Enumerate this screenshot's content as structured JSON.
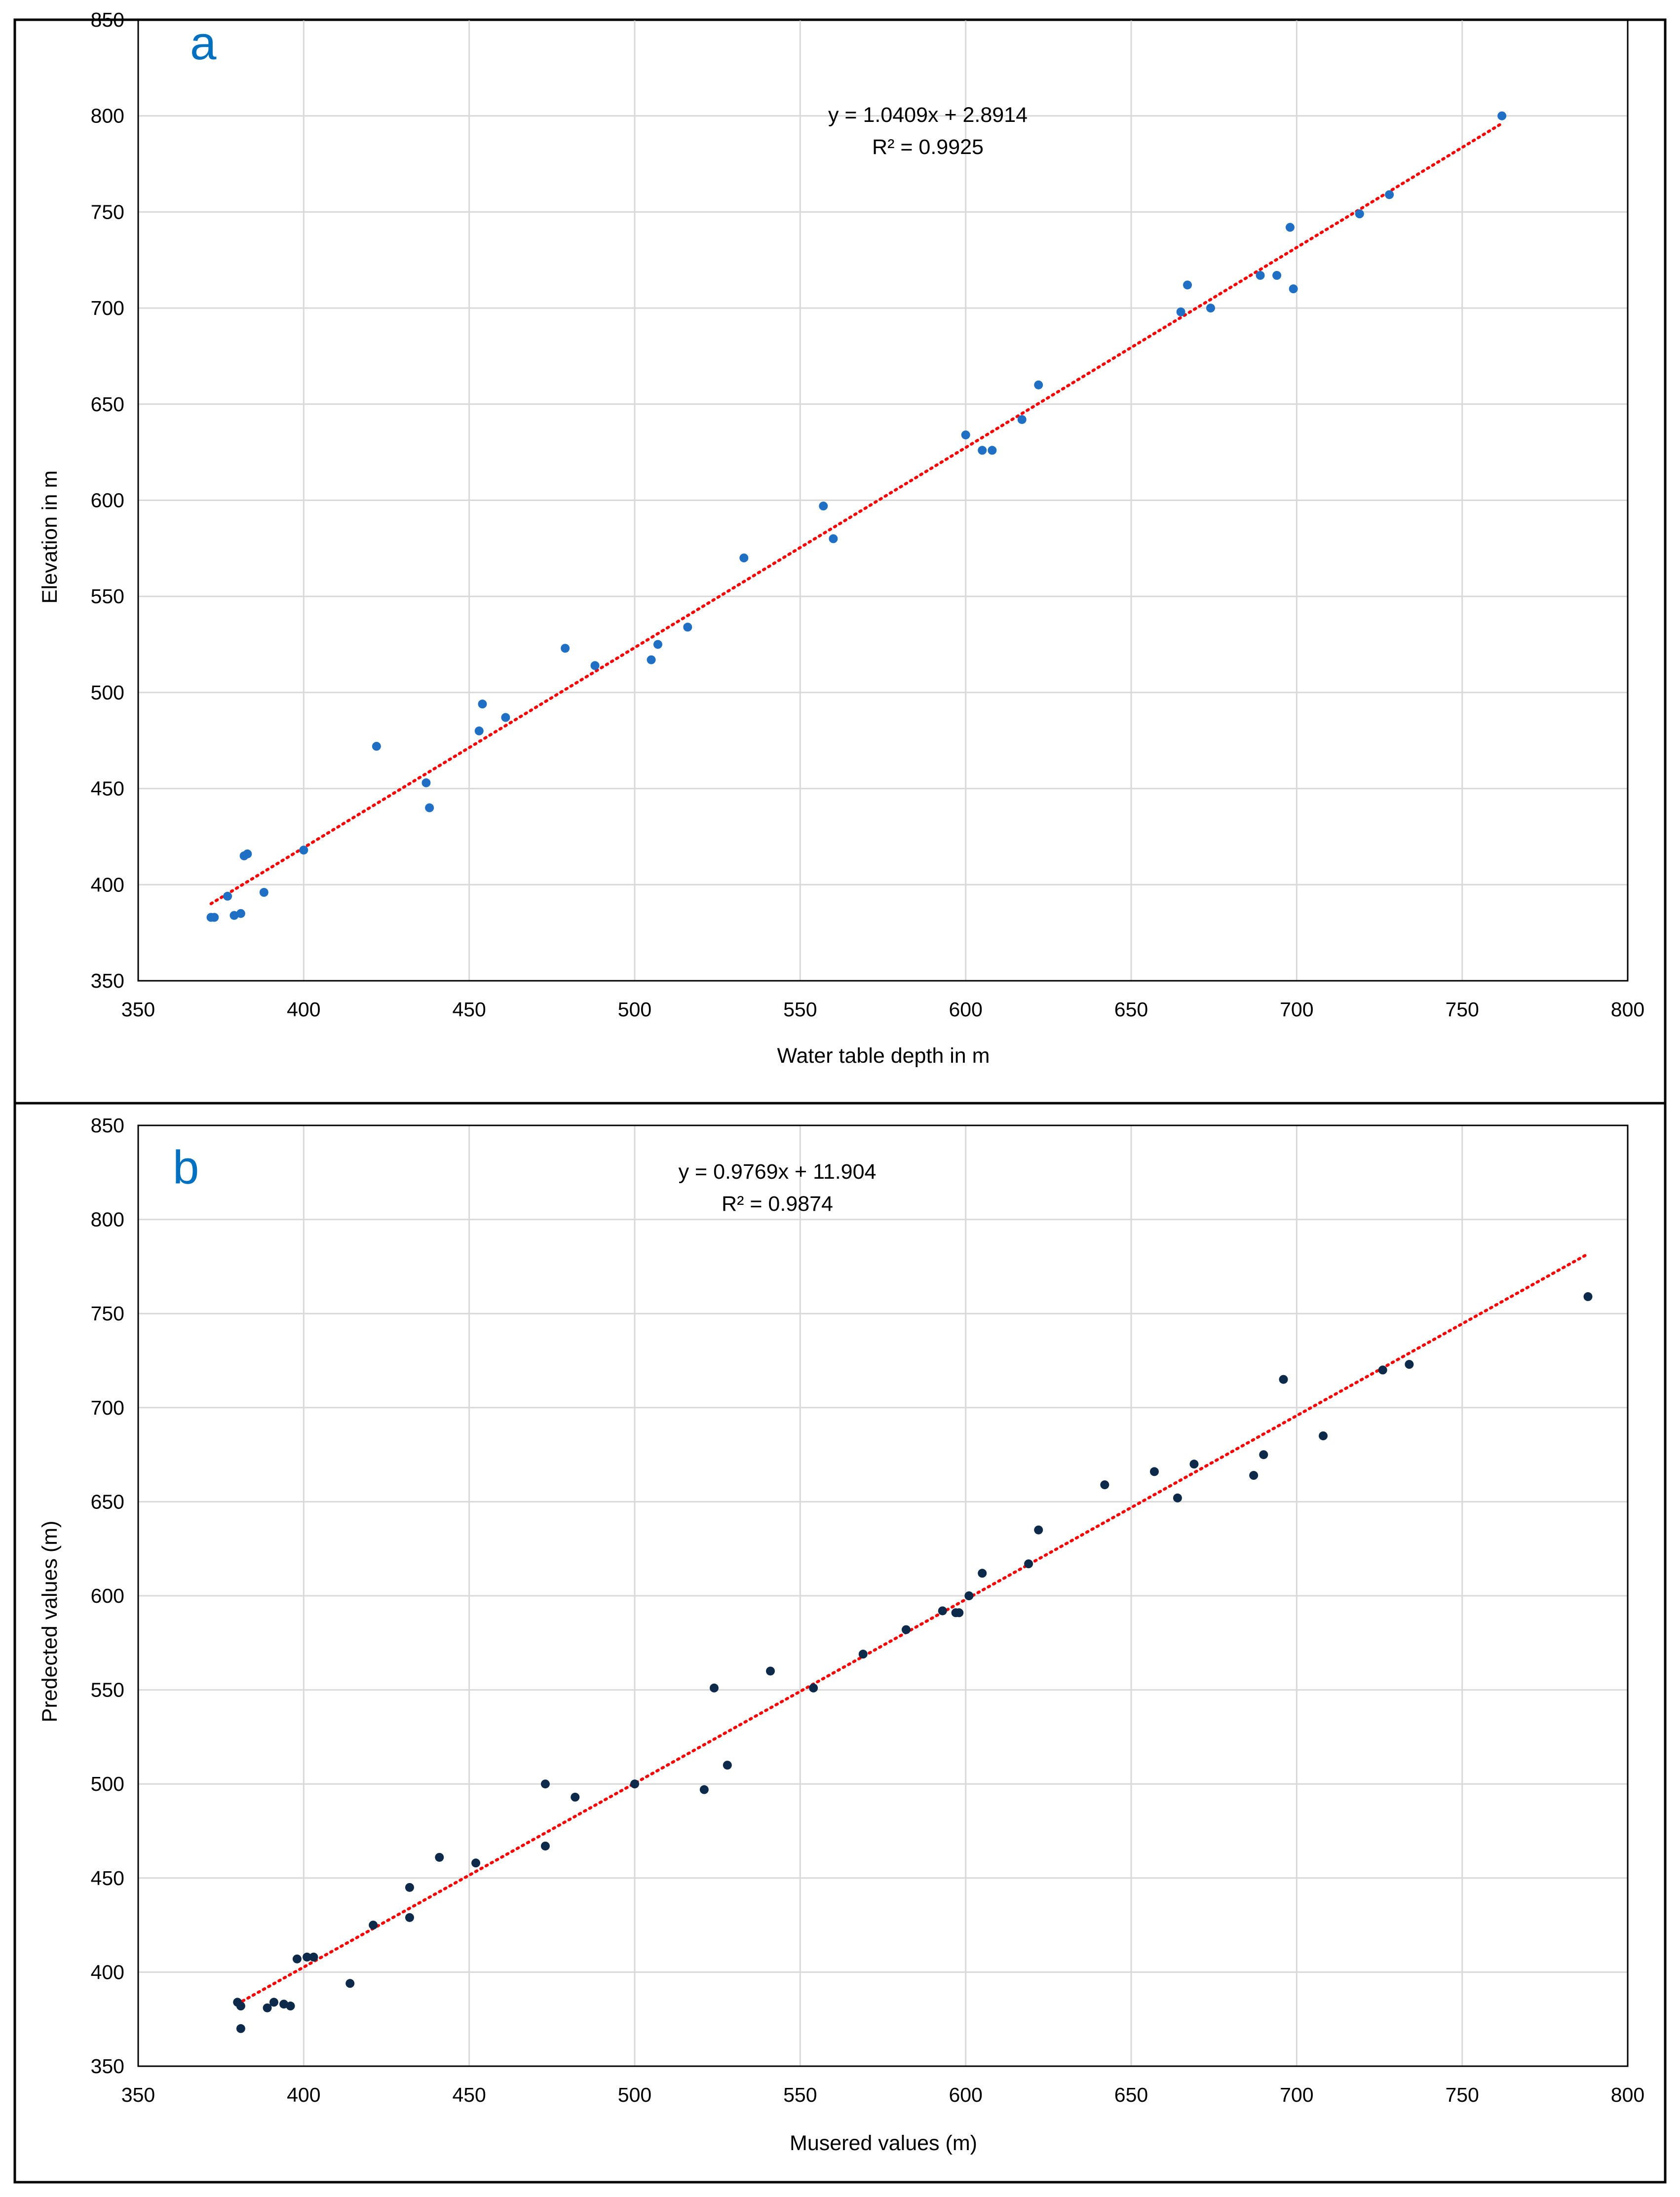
{
  "figure": {
    "colors": {
      "panel_label": "#0070c0",
      "trendline": "#ff0000"
    }
  },
  "chart_data": [
    {
      "type": "scatter",
      "panel_label": "a",
      "title": "",
      "xlabel": "Water table depth in m",
      "ylabel": "Elevation in m",
      "xlim": [
        350,
        800
      ],
      "ylim": [
        350,
        850
      ],
      "x_ticks": [
        350,
        400,
        450,
        500,
        550,
        600,
        650,
        700,
        750,
        800
      ],
      "y_ticks": [
        350,
        400,
        450,
        500,
        550,
        600,
        650,
        700,
        750,
        800,
        850
      ],
      "grid": true,
      "legend": "none",
      "marker_color": "#1f6fc5",
      "trendline": {
        "type": "linear",
        "slope": 1.0409,
        "intercept": 2.8914,
        "equation": "y = 1.0409x + 2.8914",
        "r2": "R² = 0.9925",
        "style": "dotted",
        "color": "#ff0000"
      },
      "series": [
        {
          "x": [
            372,
            373,
            377,
            379,
            381,
            382,
            383,
            388,
            400,
            422,
            437,
            438,
            453,
            454,
            461,
            479,
            488,
            505,
            507,
            516,
            533,
            557,
            560,
            600,
            605,
            608,
            617,
            622,
            665,
            667,
            674,
            689,
            694,
            698,
            699,
            719,
            728,
            762
          ],
          "y": [
            383,
            383,
            394,
            384,
            385,
            415,
            416,
            396,
            418,
            472,
            453,
            440,
            480,
            494,
            487,
            523,
            514,
            517,
            525,
            534,
            570,
            597,
            580,
            634,
            626,
            626,
            642,
            660,
            698,
            712,
            700,
            717,
            717,
            742,
            710,
            749,
            759,
            800
          ]
        }
      ]
    },
    {
      "type": "scatter",
      "panel_label": "b",
      "title": "",
      "xlabel": "Musered values (m)",
      "ylabel": "Predected values (m)",
      "xlim": [
        350,
        800
      ],
      "ylim": [
        350,
        850
      ],
      "x_ticks": [
        350,
        400,
        450,
        500,
        550,
        600,
        650,
        700,
        750,
        800
      ],
      "y_ticks": [
        350,
        400,
        450,
        500,
        550,
        600,
        650,
        700,
        750,
        800,
        850
      ],
      "grid": true,
      "legend": "none",
      "marker_color": "#0d2a4a",
      "trendline": {
        "type": "linear",
        "slope": 0.9769,
        "intercept": 11.904,
        "equation": "y = 0.9769x + 11.904",
        "r2": "R² = 0.9874",
        "style": "dotted",
        "color": "#ff0000"
      },
      "series": [
        {
          "x": [
            380,
            381,
            381,
            389,
            391,
            394,
            396,
            398,
            401,
            403,
            414,
            421,
            432,
            432,
            441,
            452,
            473,
            473,
            482,
            500,
            521,
            524,
            528,
            541,
            554,
            569,
            582,
            593,
            597,
            598,
            601,
            605,
            619,
            622,
            642,
            657,
            664,
            669,
            687,
            690,
            696,
            708,
            726,
            734,
            788
          ],
          "y": [
            384,
            382,
            370,
            381,
            384,
            383,
            382,
            407,
            408,
            408,
            394,
            425,
            445,
            429,
            461,
            458,
            467,
            500,
            493,
            500,
            497,
            551,
            510,
            560,
            551,
            569,
            582,
            592,
            591,
            591,
            600,
            612,
            617,
            635,
            659,
            666,
            652,
            670,
            664,
            675,
            715,
            685,
            720,
            723,
            759
          ]
        }
      ]
    }
  ]
}
